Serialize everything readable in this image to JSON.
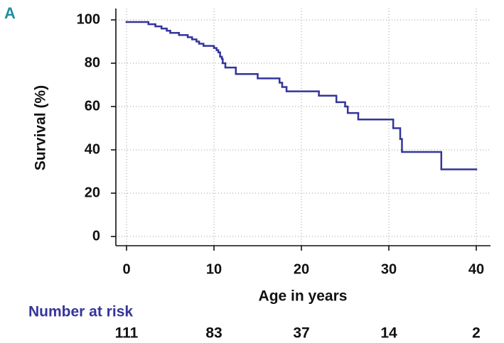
{
  "panel_label": "A",
  "chart_data": {
    "type": "step",
    "x_label": "Age in years",
    "y_label": "Survival (%)",
    "series": [
      {
        "color": "#34359a",
        "x": [
          0,
          2.5,
          3.3,
          4,
          4.6,
          5,
          6,
          7,
          7.5,
          8,
          8.3,
          8.8,
          10,
          10.3,
          10.5,
          10.7,
          10.9,
          11,
          11.3,
          12.5,
          15,
          17.5,
          17.8,
          18.3,
          22,
          24,
          25,
          25.3,
          26.5,
          30.5,
          31.3,
          31.5,
          36
        ],
        "values": [
          99,
          98,
          97,
          96,
          95,
          94,
          93,
          92,
          91,
          90,
          89,
          88,
          87,
          86,
          85,
          83,
          82,
          80,
          78,
          75,
          73,
          71,
          69,
          67,
          65,
          62,
          60,
          57,
          54,
          50,
          45,
          39,
          31
        ]
      }
    ],
    "xlim": [
      0,
      40
    ],
    "xticks": [
      0,
      10,
      20,
      30,
      40
    ],
    "ylim": [
      0,
      100
    ],
    "yticks": [
      0,
      20,
      40,
      60,
      80,
      100
    ],
    "grid": true,
    "number_at_risk": {
      "label": "Number at risk",
      "x": [
        0,
        10,
        20,
        30,
        40
      ],
      "values": [
        111,
        83,
        37,
        14,
        2
      ],
      "color": "#34359a"
    }
  }
}
